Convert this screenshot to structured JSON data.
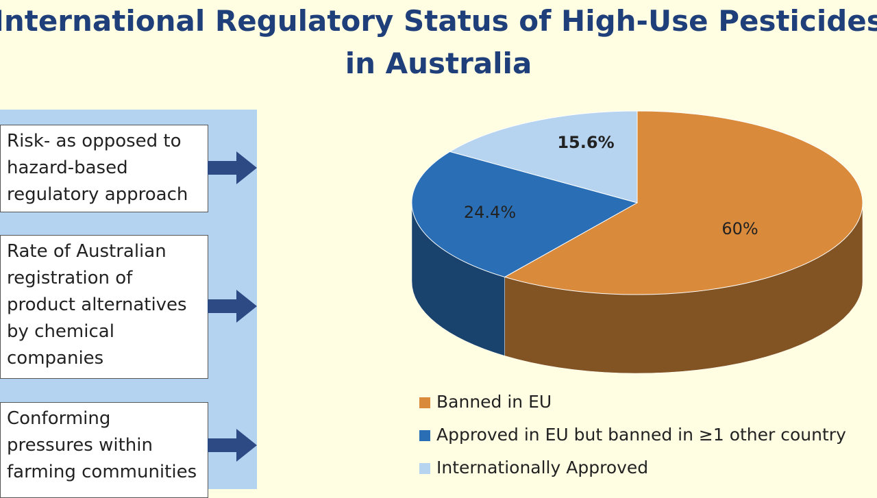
{
  "title": "International Regulatory Status of High-Use Pesticides in Australia",
  "factors": [
    "Risk- as opposed to hazard-based regulatory approach",
    "Rate of Australian registration of product alternatives by chemical companies",
    "Conforming pressures within farming communities"
  ],
  "chart_data": {
    "type": "pie",
    "categories": [
      "Banned in EU",
      "Approved in EU but banned in ≥1 other country",
      "Internationally Approved"
    ],
    "values": [
      60,
      24.4,
      15.6
    ],
    "value_labels": [
      "60%",
      "24.4%",
      "15.6%"
    ],
    "colors": [
      "#d98a3a",
      "#2a6fb5",
      "#b6d3ef"
    ]
  }
}
